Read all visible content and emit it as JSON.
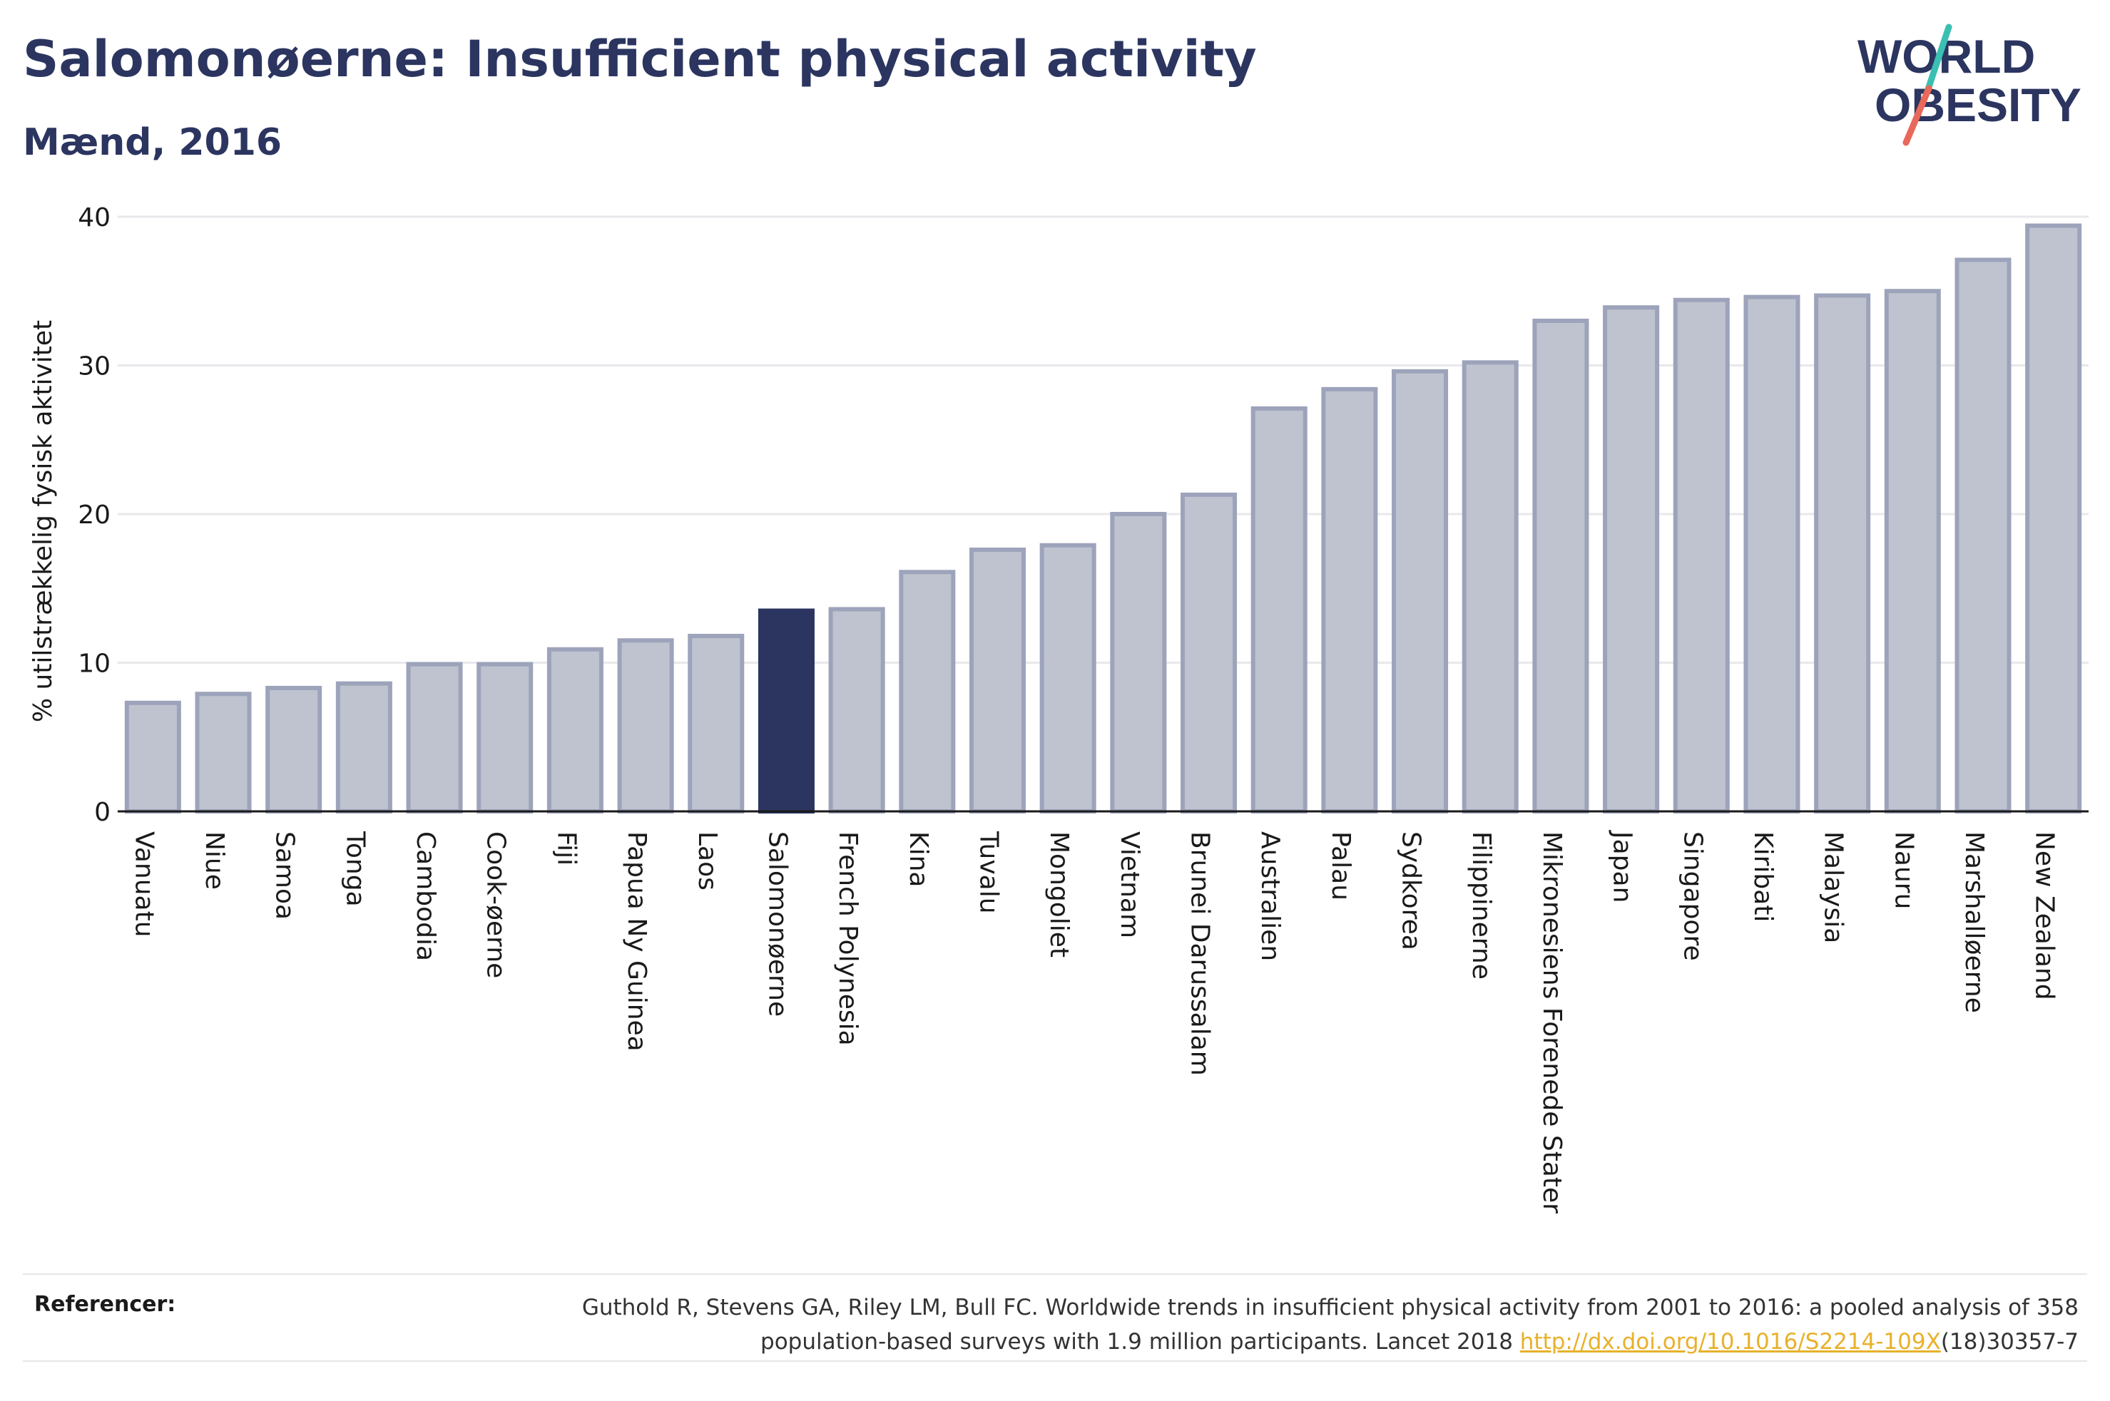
{
  "header": {
    "title": "Salomonøerne: Insufficient physical activity",
    "subtitle": "Mænd, 2016"
  },
  "logo": {
    "line1": "WORLD",
    "line2": "OBESITY",
    "colors": {
      "text": "#2b3560",
      "slash_top": "#3bbfb3",
      "slash_bottom": "#e8685a"
    }
  },
  "colors": {
    "bar": "#bfc3cf",
    "bar_stroke": "#9da3ba",
    "highlight": "#2b3560",
    "grid": "#e8e8ec",
    "axis": "#1a1a1a"
  },
  "chart_data": {
    "type": "bar",
    "title": "Salomonøerne: Insufficient physical activity",
    "subtitle": "Mænd, 2016",
    "xlabel": "",
    "ylabel": "% utilstrækkelig fysisk aktivitet",
    "ylim": [
      0,
      40
    ],
    "yticks": [
      0,
      10,
      20,
      30,
      40
    ],
    "grid": true,
    "highlight_category": "Salomonøerne",
    "categories": [
      "Vanuatu",
      "Niue",
      "Samoa",
      "Tonga",
      "Cambodia",
      "Cook-øerne",
      "Fiji",
      "Papua Ny Guinea",
      "Laos",
      "Salomonøerne",
      "French Polynesia",
      "Kina",
      "Tuvalu",
      "Mongoliet",
      "Vietnam",
      "Brunei Darussalam",
      "Australien",
      "Palau",
      "Sydkorea",
      "Filippinerne",
      "Mikronesiens Forenede Stater",
      "Japan",
      "Singapore",
      "Kiribati",
      "Malaysia",
      "Nauru",
      "Marshalløerne",
      "New Zealand"
    ],
    "values": [
      7.3,
      7.9,
      8.3,
      8.6,
      9.9,
      9.9,
      10.9,
      11.5,
      11.8,
      13.5,
      13.6,
      16.1,
      17.6,
      17.9,
      20.0,
      21.3,
      27.1,
      28.4,
      29.6,
      30.2,
      33.0,
      33.9,
      34.4,
      34.6,
      34.7,
      35.0,
      37.1,
      39.4
    ]
  },
  "footer": {
    "label": "Referencer:",
    "ref_line1": "Guthold R, Stevens GA, Riley LM, Bull FC. Worldwide trends in insufficient physical activity from 2001 to 2016: a pooled analysis of 358",
    "ref_line2_pre": "population-based surveys with 1.9 million participants. Lancet 2018 ",
    "ref_link": "http://dx.doi.org/10.1016/S2214-109X",
    "ref_line2_post": "(18)30357-7"
  }
}
